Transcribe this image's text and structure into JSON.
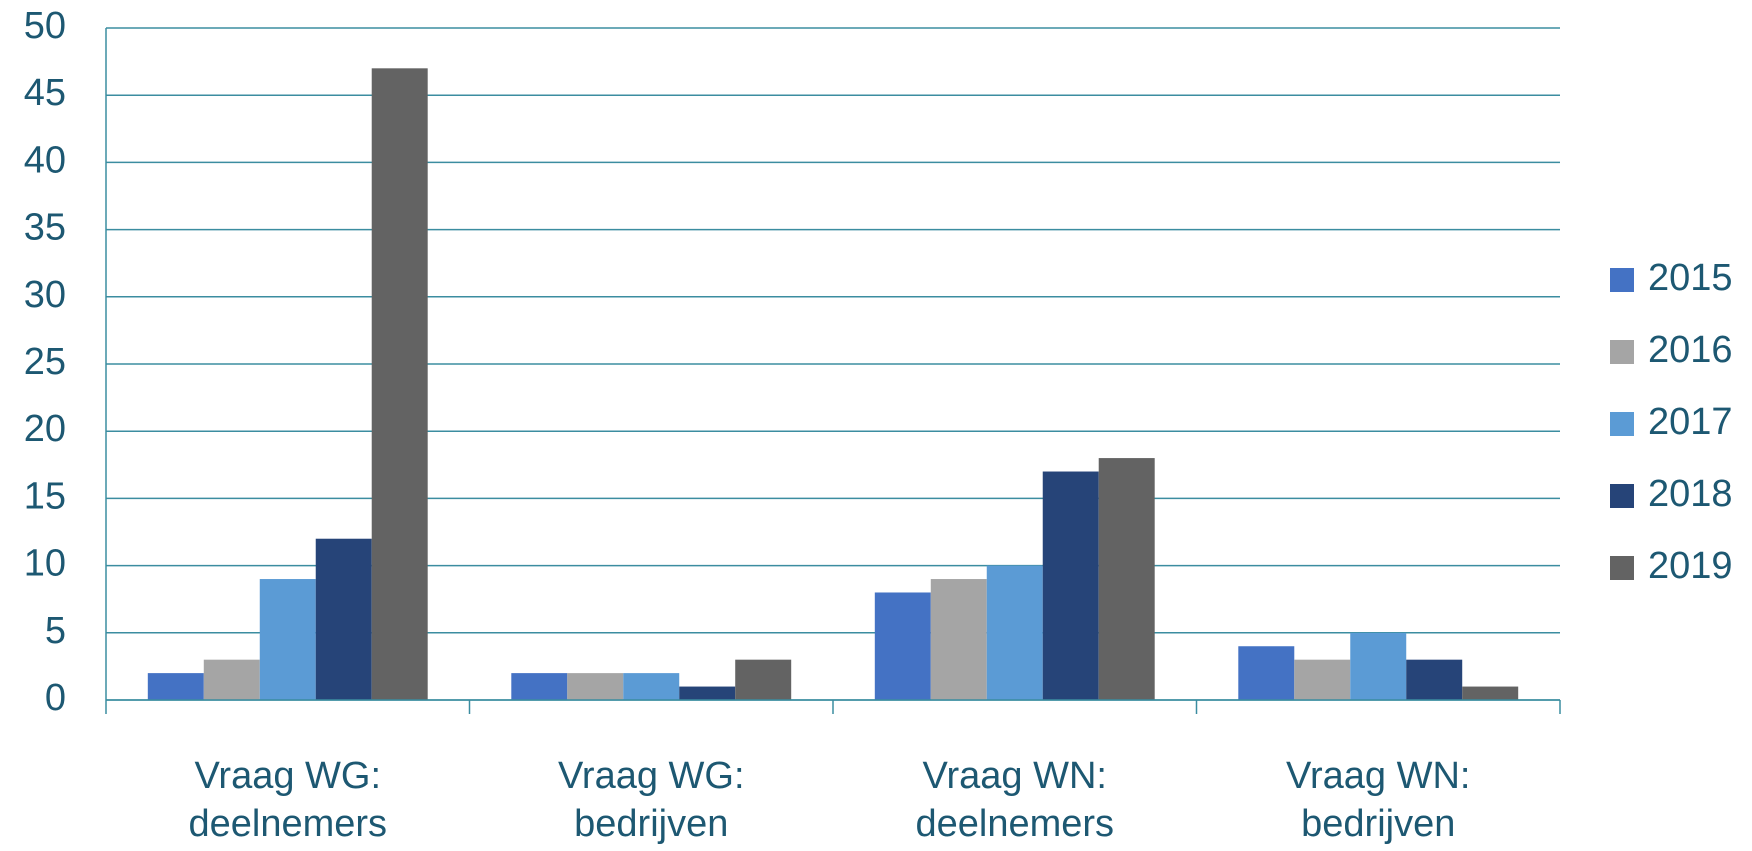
{
  "chart_data": {
    "type": "bar",
    "categories": [
      "Vraag WG: deelnemers",
      "Vraag WG: bedrijven",
      "Vraag WN: deelnemers",
      "Vraag WN: bedrijven"
    ],
    "series": [
      {
        "name": "2015",
        "color": "#4472c4",
        "values": [
          2,
          2,
          8,
          4
        ]
      },
      {
        "name": "2016",
        "color": "#a5a5a5",
        "values": [
          3,
          2,
          9,
          3
        ]
      },
      {
        "name": "2017",
        "color": "#5b9bd5",
        "values": [
          9,
          2,
          10,
          5
        ]
      },
      {
        "name": "2018",
        "color": "#264478",
        "values": [
          12,
          1,
          17,
          3
        ]
      },
      {
        "name": "2019",
        "color": "#636363",
        "values": [
          47,
          3,
          18,
          1
        ]
      }
    ],
    "ylim": [
      0,
      50
    ],
    "yticks": [
      0,
      5,
      10,
      15,
      20,
      25,
      30,
      35,
      40,
      45,
      50
    ],
    "grid": true,
    "legend": "right"
  }
}
